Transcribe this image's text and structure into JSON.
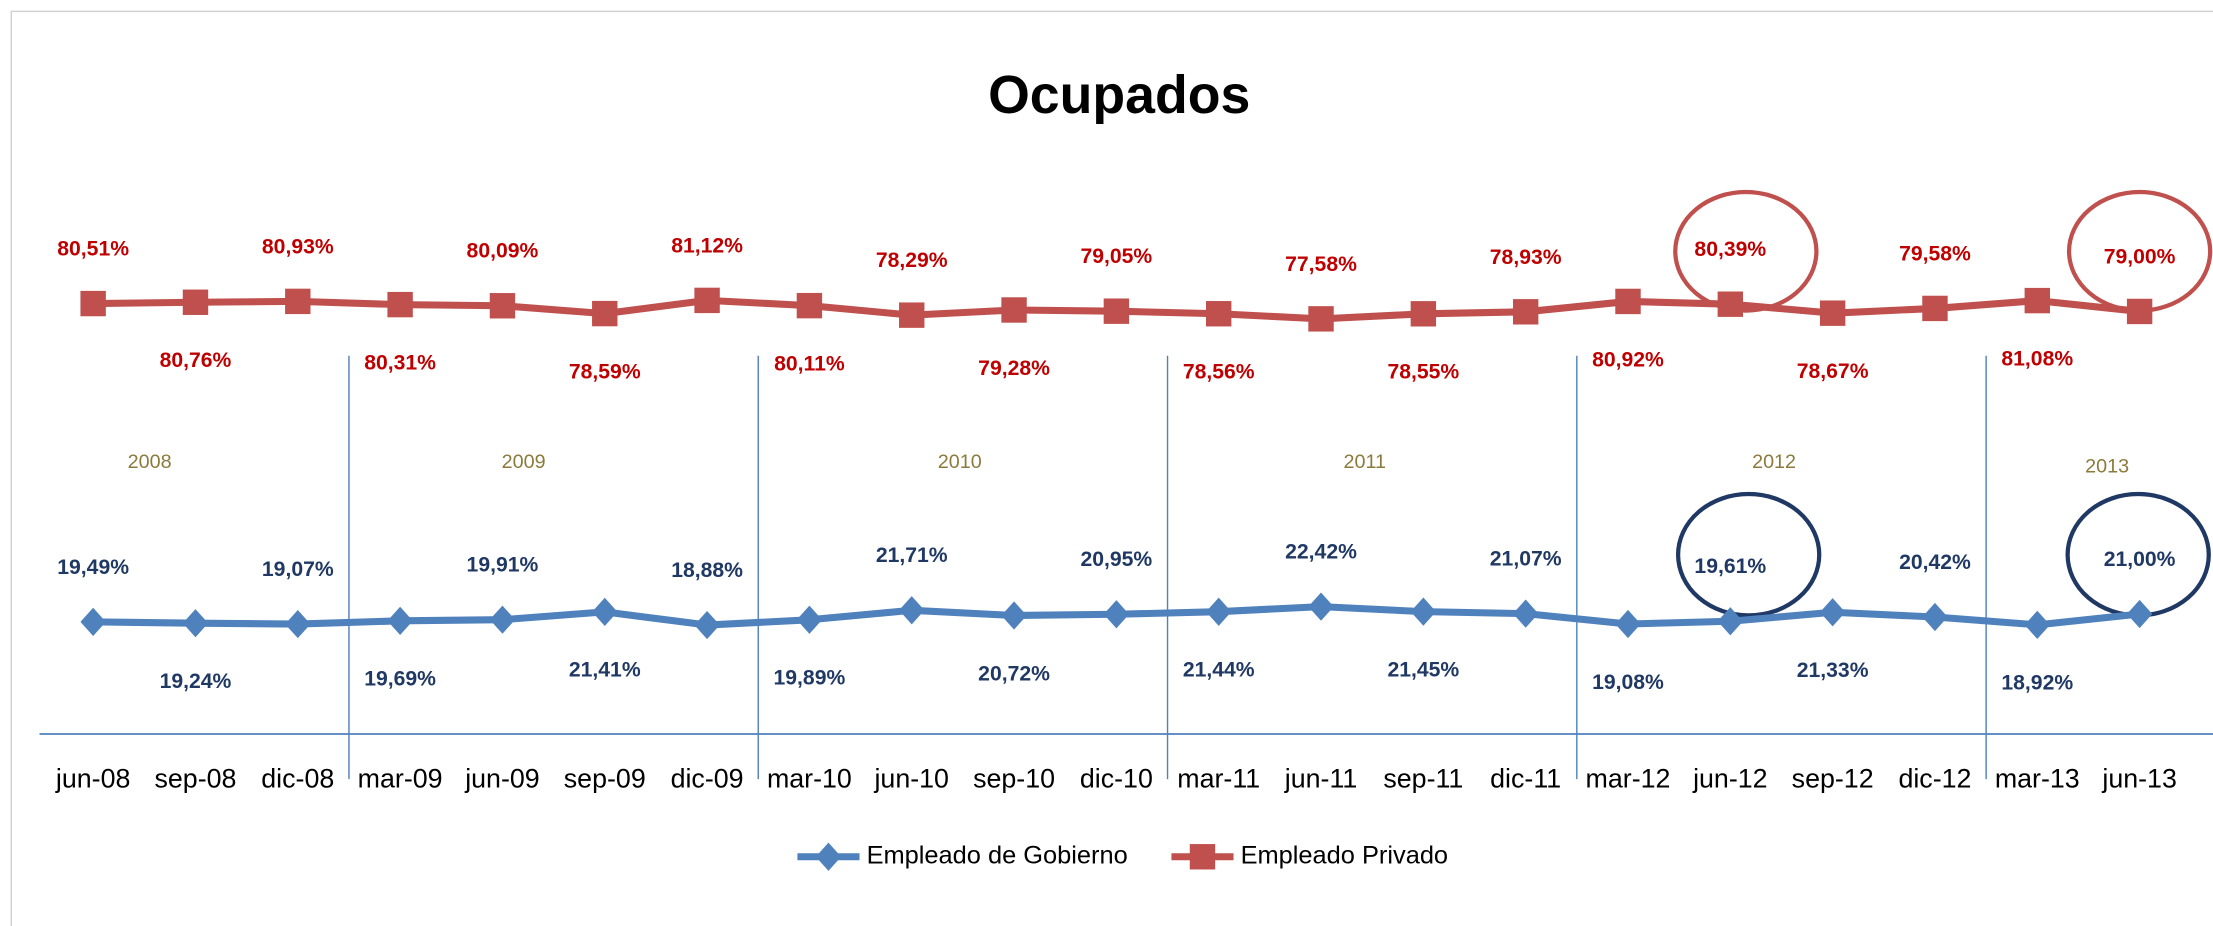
{
  "chart_data": {
    "type": "line",
    "title": "Ocupados",
    "categories": [
      "jun-08",
      "sep-08",
      "dic-08",
      "mar-09",
      "jun-09",
      "sep-09",
      "dic-09",
      "mar-10",
      "jun-10",
      "sep-10",
      "dic-10",
      "mar-11",
      "jun-11",
      "sep-11",
      "dic-11",
      "mar-12",
      "jun-12",
      "sep-12",
      "dic-12",
      "mar-13",
      "jun-13"
    ],
    "years": [
      "2008",
      "2009",
      "2010",
      "2011",
      "2012",
      "2013"
    ],
    "ylim": [
      -2,
      100
    ],
    "series": [
      {
        "name": "Empleado de Gobierno",
        "color": "#4f81bd",
        "label_color": "#1f3864",
        "marker": "diamond",
        "values": [
          19.49,
          19.24,
          19.07,
          19.69,
          19.91,
          21.41,
          18.88,
          19.89,
          21.71,
          20.72,
          20.95,
          21.44,
          22.42,
          21.45,
          21.07,
          19.08,
          19.61,
          21.33,
          20.42,
          18.92,
          21.0
        ],
        "value_labels": [
          "19,49%",
          "19,24%",
          "19,07%",
          "19,69%",
          "19,91%",
          "21,41%",
          "18,88%",
          "19,89%",
          "21,71%",
          "20,72%",
          "20,95%",
          "21,44%",
          "22,42%",
          "21,45%",
          "21,07%",
          "19,08%",
          "19,61%",
          "21,33%",
          "20,42%",
          "18,92%",
          "21,00%"
        ]
      },
      {
        "name": "Empleado Privado",
        "color": "#c0504d",
        "label_color": "#c00000",
        "marker": "square",
        "values": [
          80.51,
          80.76,
          80.93,
          80.31,
          80.09,
          78.59,
          81.12,
          80.11,
          78.29,
          79.28,
          79.05,
          78.56,
          77.58,
          78.55,
          78.93,
          80.92,
          80.39,
          78.67,
          79.58,
          81.08,
          79.0
        ],
        "value_labels": [
          "80,51%",
          "80,76%",
          "80,93%",
          "80,31%",
          "80,09%",
          "78,59%",
          "81,12%",
          "80,11%",
          "78,29%",
          "79,28%",
          "79,05%",
          "78,56%",
          "77,58%",
          "78,55%",
          "78,93%",
          "80,92%",
          "80,39%",
          "78,67%",
          "79,58%",
          "81,08%",
          "79,00%"
        ]
      }
    ]
  }
}
